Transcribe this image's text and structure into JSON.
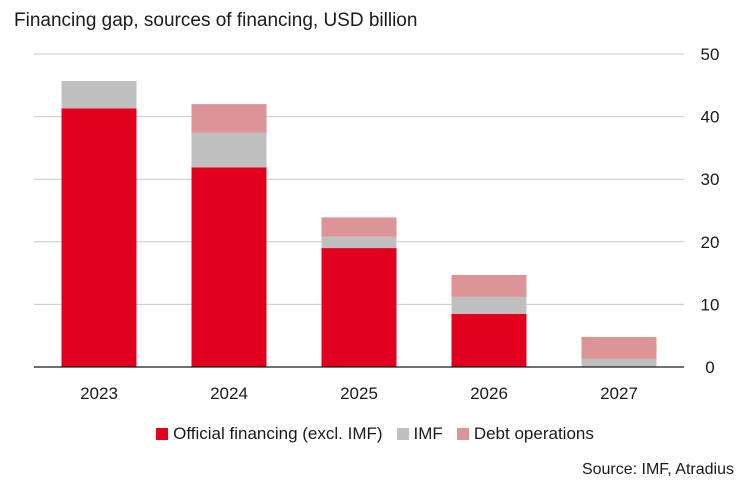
{
  "chart_data": {
    "type": "bar",
    "stacked": true,
    "title": "Financing gap, sources of financing, USD billion",
    "categories": [
      "2023",
      "2024",
      "2025",
      "2026",
      "2027"
    ],
    "series": [
      {
        "name": "Official financing (excl. IMF)",
        "color": "#e1001e",
        "values": [
          41.3,
          31.9,
          19.0,
          8.5,
          0.0
        ]
      },
      {
        "name": "IMF",
        "color": "#c0c0c0",
        "values": [
          4.4,
          5.5,
          1.8,
          2.7,
          1.3
        ]
      },
      {
        "name": "Debt operations",
        "color": "#dc9496",
        "values": [
          0.0,
          4.6,
          3.1,
          3.5,
          3.5
        ]
      }
    ],
    "yticks": [
      "0",
      "10",
      "20",
      "30",
      "40",
      "50"
    ],
    "ylim": [
      0,
      50
    ],
    "yaxis_side": "right",
    "grid": true,
    "xlabel": "",
    "ylabel": "",
    "legend_position": "bottom"
  },
  "source": "Source: IMF, Atradius"
}
